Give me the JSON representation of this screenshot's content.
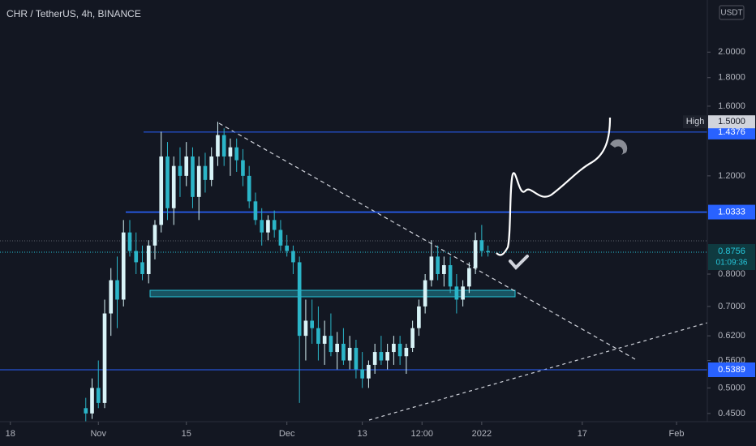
{
  "chart_data": {
    "type": "candlestick",
    "title": "CHR / TetherUS, 4h, BINANCE",
    "currency": "USDT",
    "log_scale": true,
    "up_color": "#d8f3f7",
    "down_color": "#2bb5c8",
    "categories": [
      null,
      null,
      null,
      null,
      null,
      null,
      null,
      null,
      null,
      null,
      null,
      null,
      null,
      null,
      null,
      null,
      null,
      null,
      null,
      null,
      null,
      null,
      null,
      null,
      null,
      null,
      null,
      null,
      null,
      null,
      null,
      null,
      null,
      null,
      null,
      null,
      null,
      null,
      null,
      null,
      null,
      null,
      null,
      null,
      null,
      null,
      null,
      null,
      null,
      null,
      null,
      null,
      null,
      null,
      null,
      null,
      null,
      null,
      null,
      null,
      null,
      null,
      null,
      null,
      null
    ],
    "open": [
      0.46,
      0.45,
      0.5,
      0.47,
      0.68,
      0.78,
      0.72,
      0.95,
      0.88,
      0.84,
      0.8,
      0.9,
      0.98,
      1.3,
      1.05,
      1.25,
      1.2,
      1.3,
      1.1,
      1.25,
      1.18,
      1.3,
      1.42,
      1.3,
      1.35,
      1.28,
      1.2,
      1.08,
      1.0,
      0.95,
      1.0,
      0.96,
      0.9,
      0.88,
      0.84,
      0.62,
      0.66,
      0.64,
      0.6,
      0.62,
      0.58,
      0.6,
      0.56,
      0.59,
      0.54,
      0.52,
      0.55,
      0.58,
      0.56,
      0.58,
      0.6,
      0.57,
      0.59,
      0.64,
      0.7,
      0.78,
      0.86,
      0.8,
      0.83,
      0.76,
      0.72,
      0.76,
      0.82,
      0.92,
      0.88
    ],
    "high": [
      0.48,
      0.52,
      0.56,
      0.72,
      0.82,
      0.86,
      1.0,
      1.0,
      0.95,
      0.9,
      0.92,
      1.0,
      1.44,
      1.38,
      1.3,
      1.35,
      1.38,
      1.35,
      1.3,
      1.32,
      1.35,
      1.5,
      1.46,
      1.4,
      1.4,
      1.34,
      1.25,
      1.12,
      1.05,
      1.02,
      1.04,
      1.0,
      0.94,
      0.9,
      0.86,
      0.72,
      0.72,
      0.7,
      0.66,
      0.68,
      0.63,
      0.64,
      0.62,
      0.61,
      0.58,
      0.56,
      0.6,
      0.62,
      0.6,
      0.62,
      0.62,
      0.6,
      0.66,
      0.72,
      0.8,
      0.92,
      0.9,
      0.86,
      0.86,
      0.8,
      0.78,
      0.84,
      0.95,
      0.98,
      0.9
    ],
    "low": [
      0.435,
      0.44,
      0.46,
      0.46,
      0.62,
      0.64,
      0.7,
      0.86,
      0.8,
      0.78,
      0.77,
      0.85,
      0.95,
      1.0,
      0.98,
      1.1,
      1.15,
      1.05,
      1.0,
      1.12,
      1.15,
      1.25,
      1.25,
      1.2,
      1.22,
      1.15,
      1.05,
      0.98,
      0.9,
      0.92,
      0.93,
      0.88,
      0.86,
      0.8,
      0.47,
      0.56,
      0.6,
      0.56,
      0.55,
      0.57,
      0.54,
      0.55,
      0.54,
      0.52,
      0.5,
      0.5,
      0.53,
      0.55,
      0.54,
      0.55,
      0.55,
      0.53,
      0.58,
      0.62,
      0.68,
      0.76,
      0.78,
      0.76,
      0.74,
      0.68,
      0.7,
      0.74,
      0.8,
      0.86,
      0.86
    ],
    "close": [
      0.45,
      0.5,
      0.47,
      0.68,
      0.78,
      0.72,
      0.95,
      0.88,
      0.84,
      0.8,
      0.9,
      0.98,
      1.3,
      1.05,
      1.25,
      1.2,
      1.3,
      1.1,
      1.25,
      1.18,
      1.3,
      1.42,
      1.3,
      1.35,
      1.28,
      1.2,
      1.08,
      1.0,
      0.95,
      1.0,
      0.96,
      0.9,
      0.88,
      0.84,
      0.62,
      0.66,
      0.64,
      0.6,
      0.62,
      0.58,
      0.6,
      0.56,
      0.59,
      0.54,
      0.52,
      0.55,
      0.58,
      0.56,
      0.58,
      0.6,
      0.57,
      0.59,
      0.64,
      0.7,
      0.78,
      0.86,
      0.8,
      0.83,
      0.76,
      0.72,
      0.76,
      0.82,
      0.92,
      0.88,
      0.8756
    ],
    "xlim": [
      -13.65,
      98.9
    ],
    "xticks": [
      {
        "value": -12,
        "label": "18"
      },
      {
        "value": 2,
        "label": "Nov"
      },
      {
        "value": 16,
        "label": "15"
      },
      {
        "value": 32,
        "label": "Dec"
      },
      {
        "value": 44,
        "label": "13"
      },
      {
        "value": 53.5,
        "label": "12:00"
      },
      {
        "value": 63,
        "label": "2022"
      },
      {
        "value": 79,
        "label": "17"
      },
      {
        "value": 94,
        "label": "Feb"
      }
    ],
    "ylim": [
      0.435,
      2.48
    ],
    "yticks": [
      {
        "value": 0.45,
        "label": "0.4500"
      },
      {
        "value": 0.5,
        "label": "0.5000"
      },
      {
        "value": 0.56,
        "label": "0.5600"
      },
      {
        "value": 0.62,
        "label": "0.6200"
      },
      {
        "value": 0.7,
        "label": "0.7000"
      },
      {
        "value": 0.8,
        "label": "0.8000"
      },
      {
        "value": 1.2,
        "label": "1.2000"
      },
      {
        "value": 1.6,
        "label": "1.6000"
      },
      {
        "value": 1.8,
        "label": "1.8000"
      },
      {
        "value": 2.0,
        "label": "2.0000"
      }
    ],
    "high_marker": {
      "name": "High",
      "value": 1.5,
      "label": "1.5000"
    },
    "levels": [
      1.4376,
      1.0333,
      0.5389
    ],
    "last_price": 0.8756,
    "countdown": "01:09:36"
  }
}
